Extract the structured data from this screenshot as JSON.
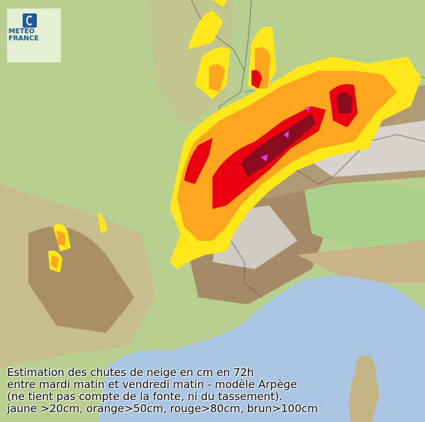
{
  "logo": {
    "line1": "METEO",
    "line2": "FRANCE"
  },
  "caption": {
    "line1": "Estimation des chutes de neige en cm en 72h",
    "line2": "entre mardi matin et vendredi matin - modèle Arpège",
    "line3": "(ne tient pas compte de la fonte, ni du tassement).",
    "line4": "jaune >20cm, orange>50cm, rouge>80cm, brun>100cm"
  },
  "legend_colors": {
    "jaune": "#ffe81a",
    "orange": "#ffa51e",
    "rouge": "#e8000e",
    "brun": "#8a0a1e",
    "max": "#e040e0"
  },
  "terrain_colors": {
    "plain": "#b7d08e",
    "hill": "#c9b98a",
    "mountain": "#9c8564",
    "sea": "#a9c5e2",
    "alps": "#d9d6d0"
  }
}
